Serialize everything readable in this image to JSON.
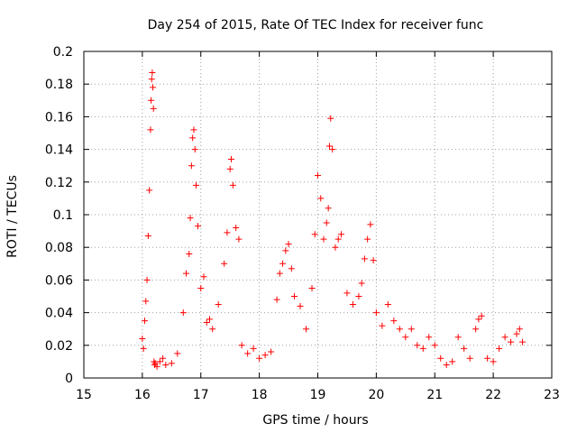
{
  "chart_data": {
    "type": "scatter",
    "title": "Day 254 of 2015, Rate Of TEC Index for receiver func",
    "xlabel": "GPS time / hours",
    "ylabel": "ROTI / TECUs",
    "xlim": [
      15,
      23
    ],
    "ylim": [
      0,
      0.2
    ],
    "xticks": [
      "15",
      "16",
      "17",
      "18",
      "19",
      "20",
      "21",
      "22",
      "23"
    ],
    "yticks": [
      "0",
      "0.02",
      "0.04",
      "0.06",
      "0.08",
      "0.1",
      "0.12",
      "0.14",
      "0.16",
      "0.18",
      "0.2"
    ],
    "grid": true,
    "marker": "+",
    "color": "#ff0000",
    "series": [
      {
        "name": "ROTI",
        "x": [
          16.0,
          16.02,
          16.04,
          16.06,
          16.08,
          16.1,
          16.12,
          16.14,
          16.15,
          16.16,
          16.17,
          16.18,
          16.19,
          16.2,
          16.21,
          16.22,
          16.25,
          16.3,
          16.35,
          16.4,
          16.5,
          16.6,
          16.7,
          16.75,
          16.8,
          16.82,
          16.84,
          16.86,
          16.88,
          16.9,
          16.92,
          16.95,
          17.0,
          17.05,
          17.1,
          17.15,
          17.2,
          17.3,
          17.4,
          17.45,
          17.5,
          17.52,
          17.55,
          17.6,
          17.65,
          17.7,
          17.8,
          17.9,
          18.0,
          18.1,
          18.2,
          18.3,
          18.35,
          18.4,
          18.45,
          18.5,
          18.55,
          18.6,
          18.7,
          18.8,
          18.9,
          18.95,
          19.0,
          19.05,
          19.1,
          19.15,
          19.18,
          19.2,
          19.22,
          19.25,
          19.3,
          19.35,
          19.4,
          19.5,
          19.6,
          19.7,
          19.75,
          19.8,
          19.85,
          19.9,
          19.95,
          20.0,
          20.1,
          20.2,
          20.3,
          20.4,
          20.5,
          20.6,
          20.7,
          20.8,
          20.9,
          21.0,
          21.1,
          21.2,
          21.3,
          21.4,
          21.5,
          21.6,
          21.7,
          21.75,
          21.8,
          21.9,
          22.0,
          22.1,
          22.2,
          22.3,
          22.4,
          22.45,
          22.5
        ],
        "y": [
          0.024,
          0.018,
          0.035,
          0.047,
          0.06,
          0.087,
          0.115,
          0.152,
          0.17,
          0.183,
          0.187,
          0.178,
          0.165,
          0.01,
          0.008,
          0.009,
          0.007,
          0.01,
          0.012,
          0.008,
          0.009,
          0.015,
          0.04,
          0.064,
          0.076,
          0.098,
          0.13,
          0.147,
          0.152,
          0.14,
          0.118,
          0.093,
          0.055,
          0.062,
          0.034,
          0.036,
          0.03,
          0.045,
          0.07,
          0.089,
          0.128,
          0.134,
          0.118,
          0.092,
          0.085,
          0.02,
          0.015,
          0.018,
          0.012,
          0.014,
          0.016,
          0.048,
          0.064,
          0.07,
          0.078,
          0.082,
          0.067,
          0.05,
          0.044,
          0.03,
          0.055,
          0.088,
          0.124,
          0.11,
          0.085,
          0.095,
          0.104,
          0.142,
          0.159,
          0.14,
          0.08,
          0.085,
          0.088,
          0.052,
          0.045,
          0.05,
          0.058,
          0.073,
          0.085,
          0.094,
          0.072,
          0.04,
          0.032,
          0.045,
          0.035,
          0.03,
          0.025,
          0.03,
          0.02,
          0.018,
          0.025,
          0.02,
          0.012,
          0.008,
          0.01,
          0.025,
          0.018,
          0.012,
          0.03,
          0.036,
          0.038,
          0.012,
          0.01,
          0.018,
          0.025,
          0.022,
          0.027,
          0.03,
          0.022
        ]
      }
    ]
  }
}
